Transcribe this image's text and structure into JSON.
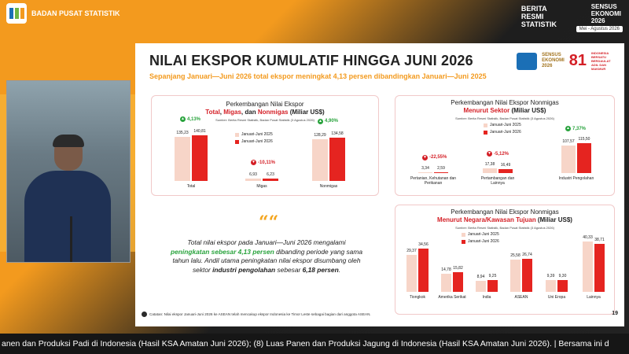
{
  "header": {
    "org": "BADAN PUSAT STATISTIK",
    "brs": [
      "BERITA",
      "RESMI",
      "STATISTIK"
    ],
    "sensus": [
      "SENSUS",
      "EKONOMI",
      "2026"
    ],
    "sensus_date": "Mei - Agustus 2026"
  },
  "slide": {
    "title": "NILAI EKSPOR KUMULATIF HINGGA JUNI 2026",
    "subtitle": "Sepanjang Januari—Juni 2026 total ekspor meningkat 4,13 persen dibandingkan Januari—Juni 2025",
    "logos": {
      "sensus": [
        "SENSUS",
        "EKONOMI",
        "2026"
      ],
      "ri": "81",
      "ri_text": "INDONESIA BERSATU BERDAULAT ADIL DAN MAKMUR"
    },
    "page": "19"
  },
  "panel1": {
    "title": "Perkembangan Nilai Ekspor",
    "t_total": "Total",
    "t_sep1": ", ",
    "t_migas": "Migas",
    "t_sep2": ", dan ",
    "t_nonmigas": "Nonmigas",
    "t_unit": " (Miliar US$)",
    "source": "Sumber: Berita Resmi Statistik, Badan Pusat Statistik (3 Agustus 2026)",
    "legend": [
      "Januari-Juni 2025",
      "Januari-Juni 2026"
    ],
    "groups": [
      {
        "name": "Total",
        "v2025": "135,23",
        "v2026": "140,81",
        "change": "4,13%",
        "dir": "up"
      },
      {
        "name": "Migas",
        "v2025": "6,93",
        "v2026": "6,23",
        "change": "-10,11%",
        "dir": "dn"
      },
      {
        "name": "Nonmigas",
        "v2025": "128,29",
        "v2026": "134,58",
        "change": "4,90%",
        "dir": "up"
      }
    ]
  },
  "panel2": {
    "title": "Perkembangan Nilai Ekspor Nonmigas",
    "t_red": "Menurut Sektor",
    "t_unit": " (Miliar US$)",
    "source": "Sumber: Berita Resmi Statistik, Badan Pusat Statistik (3 Agustus 2026)",
    "legend": [
      "Januari-Juni 2025",
      "Januari-Juni 2026"
    ],
    "groups": [
      {
        "name": "Pertanian, Kehutanan dan Perikanan",
        "v2025": "3,34",
        "v2026": "2,59",
        "change": "-22,55%",
        "dir": "dn"
      },
      {
        "name": "Pertambangan dan Lainnya",
        "v2025": "17,38",
        "v2026": "16,49",
        "change": "-5,12%",
        "dir": "dn"
      },
      {
        "name": "Industri Pengolahan",
        "v2025": "107,57",
        "v2026": "115,50",
        "change": "7,37%",
        "dir": "up"
      }
    ]
  },
  "panel3": {
    "title": "Perkembangan Nilai Ekspor Nonmigas",
    "t_red": "Menurut Negara/Kawasan Tujuan",
    "t_unit": " (Miliar US$)",
    "source": "Sumber: Berita Resmi Statistik, Badan Pusat Statistik (3 Agustus 2026)",
    "legend": [
      "Januari-Juni 2025",
      "Januari-Juni 2026"
    ],
    "groups": [
      {
        "name": "Tiongkok",
        "v2025": "29,37",
        "v2026": "34,56"
      },
      {
        "name": "Amerika Serikat",
        "v2025": "14,78",
        "v2026": "15,82"
      },
      {
        "name": "India",
        "v2025": "8,94",
        "v2026": "9,25"
      },
      {
        "name": "ASEAN",
        "v2025": "25,58",
        "v2026": "26,74"
      },
      {
        "name": "Uni Eropa",
        "v2025": "9,39",
        "v2026": "9,30"
      },
      {
        "name": "Lainnya",
        "v2025": "40,33",
        "v2026": "38,71"
      }
    ]
  },
  "quote": {
    "mark": "““",
    "p1": "Total nilai ekspor pada Januari—Juni 2026 mengalami ",
    "p2": "peningkatan sebesar 4,13 persen",
    "p3": " dibanding periode yang sama tahun lalu. Andil utama peningkatan nilai ekspor disumbang oleh sektor ",
    "p4": "industri pengolahan",
    "p5": " sebesar ",
    "p6": "6,18 persen",
    "p7": "."
  },
  "footnote": "Catatan: Nilai ekspor Januari-Juni 2026 ke ASEAN telah mencakup ekspor Indonesia ke Timor Leste sebagai bagian dari anggota ASEAN.",
  "ticker": "anen dan Produksi Padi di Indonesia (Hasil KSA Amatan Juni 2026); (8) Luas Panen dan Produksi Jagung di Indonesia (Hasil KSA Amatan Juni 2026).  |   Bersama ini d",
  "colors": {
    "orange": "#f39a1e",
    "red": "#e52420",
    "pink": "#f7d5c8",
    "green": "#29a33d"
  }
}
